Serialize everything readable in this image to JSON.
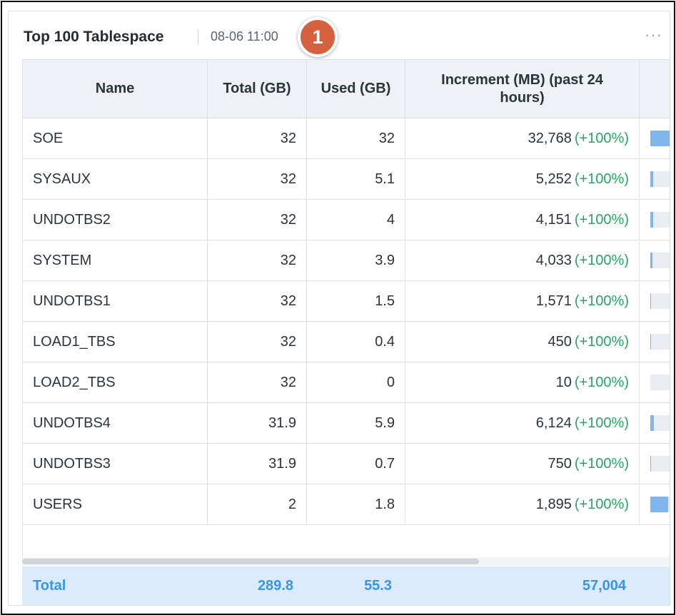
{
  "header": {
    "title": "Top 100 Tablespace",
    "timestamp": "08-06 11:00",
    "badge": "1",
    "more_icon": "more-horizontal-icon",
    "more_glyph": "···"
  },
  "table": {
    "columns": [
      "Name",
      "Total (GB)",
      "Used (GB)",
      "Increment (MB) (past 24 hours)"
    ],
    "rows": [
      {
        "name": "SOE",
        "total": "32",
        "used": "32",
        "increment": "32,768",
        "pct": "(+100%)",
        "usage": 1.0
      },
      {
        "name": "SYSAUX",
        "total": "32",
        "used": "5.1",
        "increment": "5,252",
        "pct": "(+100%)",
        "usage": 0.16
      },
      {
        "name": "UNDOTBS2",
        "total": "32",
        "used": "4",
        "increment": "4,151",
        "pct": "(+100%)",
        "usage": 0.125
      },
      {
        "name": "SYSTEM",
        "total": "32",
        "used": "3.9",
        "increment": "4,033",
        "pct": "(+100%)",
        "usage": 0.12
      },
      {
        "name": "UNDOTBS1",
        "total": "32",
        "used": "1.5",
        "increment": "1,571",
        "pct": "(+100%)",
        "usage": 0.047
      },
      {
        "name": "LOAD1_TBS",
        "total": "32",
        "used": "0.4",
        "increment": "450",
        "pct": "(+100%)",
        "usage": 0.013
      },
      {
        "name": "LOAD2_TBS",
        "total": "32",
        "used": "0",
        "increment": "10",
        "pct": "(+100%)",
        "usage": 0.0
      },
      {
        "name": "UNDOTBS4",
        "total": "31.9",
        "used": "5.9",
        "increment": "6,124",
        "pct": "(+100%)",
        "usage": 0.185
      },
      {
        "name": "UNDOTBS3",
        "total": "31.9",
        "used": "0.7",
        "increment": "750",
        "pct": "(+100%)",
        "usage": 0.022
      },
      {
        "name": "USERS",
        "total": "2",
        "used": "1.8",
        "increment": "1,895",
        "pct": "(+100%)",
        "usage": 0.9
      }
    ]
  },
  "footer": {
    "label": "Total",
    "total": "289.8",
    "used": "55.3",
    "increment": "57,004"
  },
  "colors": {
    "accent": "#3a95ea",
    "positive": "#27a567",
    "bar_fill": "#7fb6f0",
    "badge": "#d5613f"
  }
}
